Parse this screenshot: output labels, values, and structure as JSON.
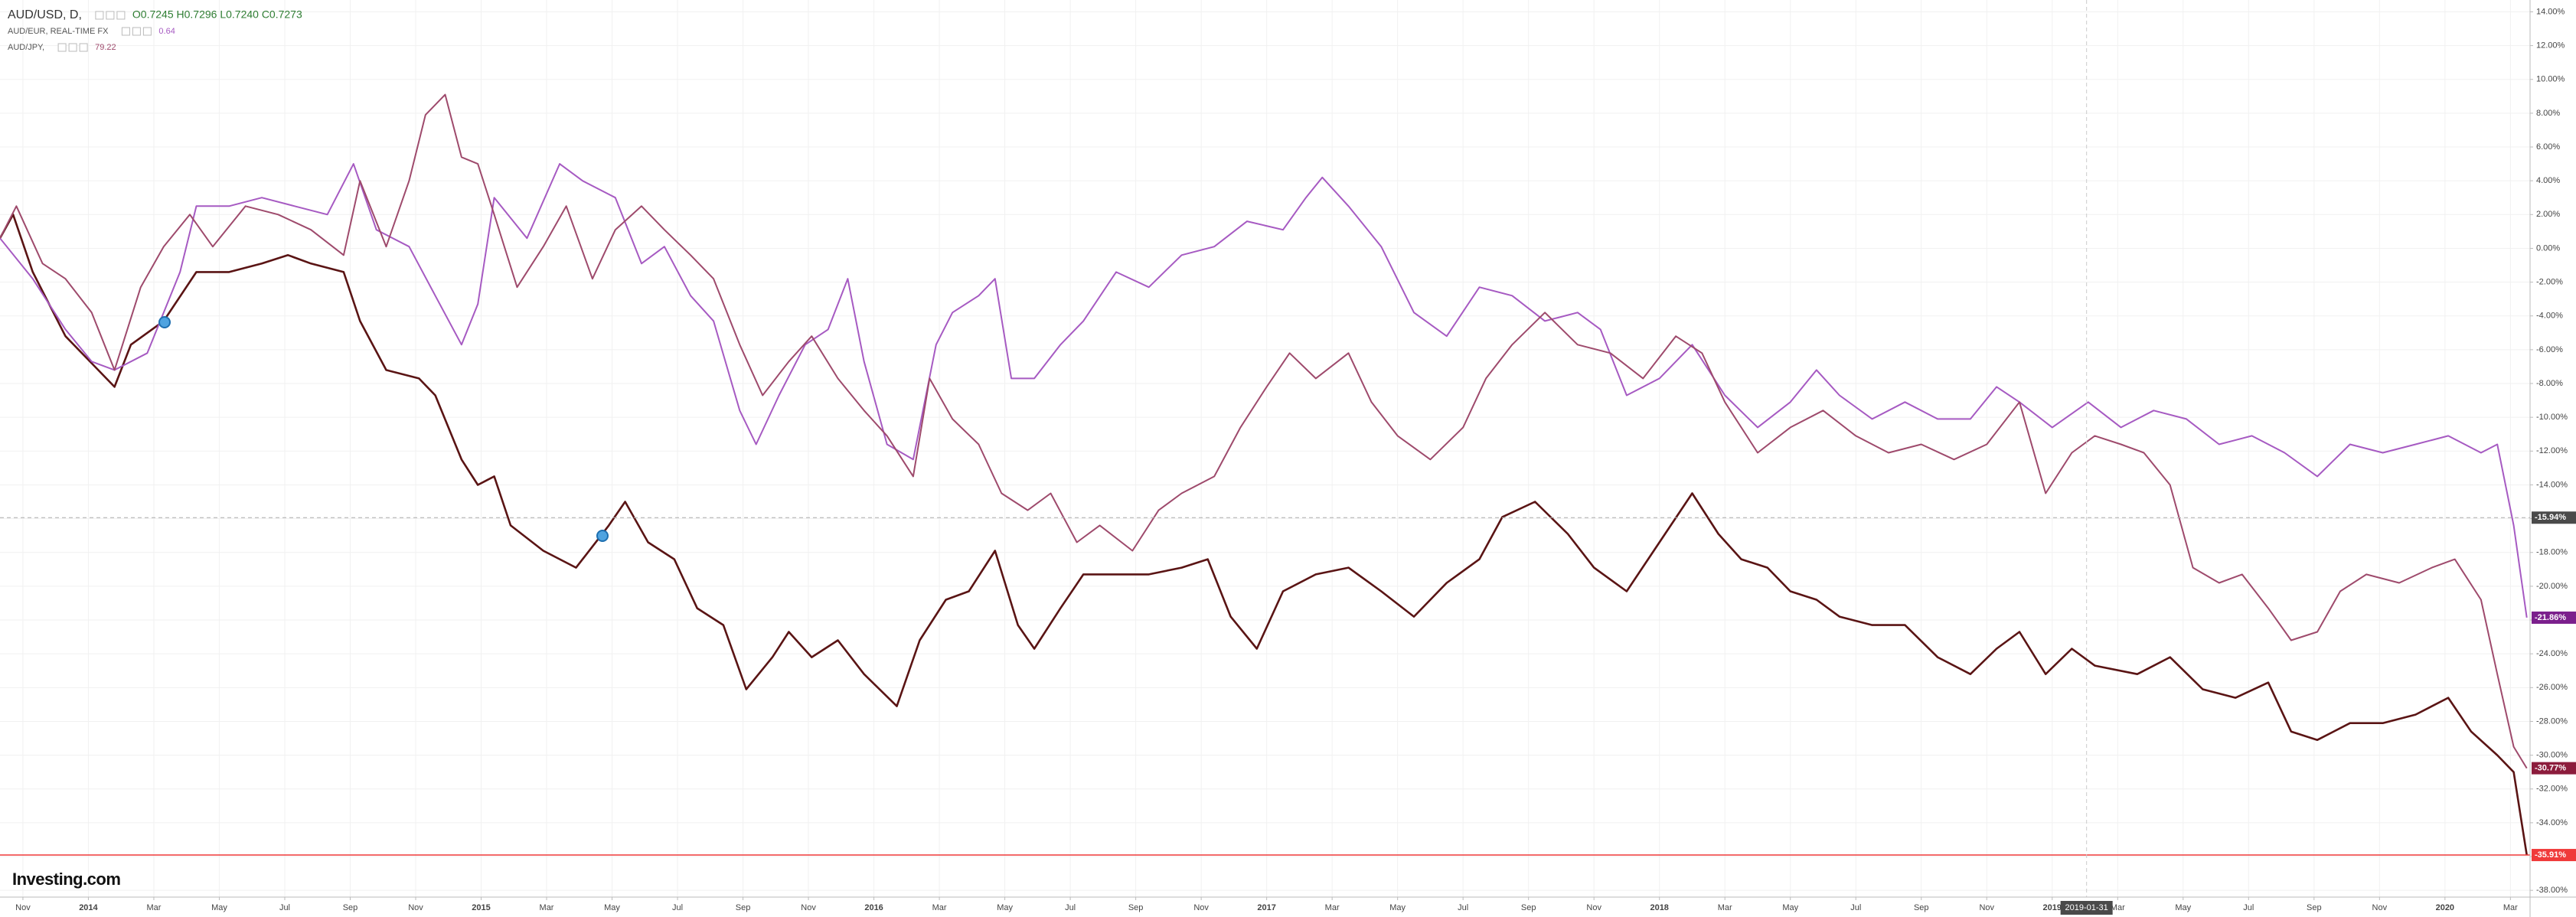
{
  "chart_data": {
    "type": "line",
    "watermark": "Investing.com",
    "grid": true,
    "xlim": [
      -0.7,
      76.6
    ],
    "ylim": [
      -38.4,
      14.7
    ],
    "xticks": [
      {
        "value": 0,
        "label": "Nov"
      },
      {
        "value": 2,
        "label": "2014"
      },
      {
        "value": 4,
        "label": "Mar"
      },
      {
        "value": 6,
        "label": "May"
      },
      {
        "value": 8,
        "label": "Jul"
      },
      {
        "value": 10,
        "label": "Sep"
      },
      {
        "value": 12,
        "label": "Nov"
      },
      {
        "value": 14,
        "label": "2015"
      },
      {
        "value": 16,
        "label": "Mar"
      },
      {
        "value": 18,
        "label": "May"
      },
      {
        "value": 20,
        "label": "Jul"
      },
      {
        "value": 22,
        "label": "Sep"
      },
      {
        "value": 24,
        "label": "Nov"
      },
      {
        "value": 26,
        "label": "2016"
      },
      {
        "value": 28,
        "label": "Mar"
      },
      {
        "value": 30,
        "label": "May"
      },
      {
        "value": 32,
        "label": "Jul"
      },
      {
        "value": 34,
        "label": "Sep"
      },
      {
        "value": 36,
        "label": "Nov"
      },
      {
        "value": 38,
        "label": "2017"
      },
      {
        "value": 40,
        "label": "Mar"
      },
      {
        "value": 42,
        "label": "May"
      },
      {
        "value": 44,
        "label": "Jul"
      },
      {
        "value": 46,
        "label": "Sep"
      },
      {
        "value": 48,
        "label": "Nov"
      },
      {
        "value": 50,
        "label": "2018"
      },
      {
        "value": 52,
        "label": "Mar"
      },
      {
        "value": 54,
        "label": "May"
      },
      {
        "value": 56,
        "label": "Jul"
      },
      {
        "value": 58,
        "label": "Sep"
      },
      {
        "value": 60,
        "label": "Nov"
      },
      {
        "value": 62,
        "label": "2019"
      },
      {
        "value": 64,
        "label": "Mar"
      },
      {
        "value": 66,
        "label": "May"
      },
      {
        "value": 68,
        "label": "Jul"
      },
      {
        "value": 70,
        "label": "Sep"
      },
      {
        "value": 72,
        "label": "Nov"
      },
      {
        "value": 74,
        "label": "2020"
      },
      {
        "value": 76,
        "label": "Mar"
      }
    ],
    "yticks": [
      {
        "value": 14,
        "label": "14.00%"
      },
      {
        "value": 12,
        "label": "12.00%"
      },
      {
        "value": 10,
        "label": "10.00%"
      },
      {
        "value": 8,
        "label": "8.00%"
      },
      {
        "value": 6,
        "label": "6.00%"
      },
      {
        "value": 4,
        "label": "4.00%"
      },
      {
        "value": 2,
        "label": "2.00%"
      },
      {
        "value": 0,
        "label": "0.00%"
      },
      {
        "value": -2,
        "label": "-2.00%"
      },
      {
        "value": -4,
        "label": "-4.00%"
      },
      {
        "value": -6,
        "label": "-6.00%"
      },
      {
        "value": -8,
        "label": "-8.00%"
      },
      {
        "value": -10,
        "label": "-10.00%"
      },
      {
        "value": -12,
        "label": "-12.00%"
      },
      {
        "value": -14,
        "label": "-14.00%"
      },
      {
        "value": -16,
        "label": "-16.00%"
      },
      {
        "value": -18,
        "label": "-18.00%"
      },
      {
        "value": -20,
        "label": "-20.00%"
      },
      {
        "value": -22,
        "label": "-22.00%"
      },
      {
        "value": -24,
        "label": "-24.00%"
      },
      {
        "value": -26,
        "label": "-26.00%"
      },
      {
        "value": -28,
        "label": "-28.00%"
      },
      {
        "value": -30,
        "label": "-30.00%"
      },
      {
        "value": -32,
        "label": "-32.00%"
      },
      {
        "value": -34,
        "label": "-34.00%"
      },
      {
        "value": -36,
        "label": "-36.00%"
      },
      {
        "value": -38,
        "label": "-38.00%"
      }
    ],
    "crosshair": {
      "x": 63.05,
      "x_label": "2019-01-31",
      "y": -15.94,
      "y_label": "-15.94%"
    },
    "series": [
      {
        "name": "AUD/USD, D,",
        "legend_value": "O0.7245  H0.7296  L0.7240  C0.7273",
        "color": "#5a1414",
        "last_label": "-35.91%",
        "label_color": "#f03a3a",
        "x": [
          -0.7,
          -0.3,
          0.3,
          1.3,
          2.3,
          2.8,
          3.3,
          4.3,
          5.3,
          6.3,
          7.3,
          8.1,
          8.8,
          9.8,
          10.3,
          11.1,
          12.1,
          12.6,
          13.4,
          13.9,
          14.4,
          14.9,
          15.9,
          16.9,
          17.9,
          18.4,
          19.1,
          19.9,
          20.6,
          21.4,
          22.1,
          22.9,
          23.4,
          24.1,
          24.9,
          25.7,
          26.7,
          27.4,
          28.2,
          28.9,
          29.7,
          30.4,
          30.9,
          31.7,
          32.4,
          33.4,
          34.4,
          35.4,
          36.2,
          36.9,
          37.7,
          38.5,
          39.5,
          40.5,
          41.5,
          42.5,
          43.5,
          44.5,
          45.2,
          46.2,
          47.2,
          48.0,
          49.0,
          50.0,
          51.0,
          51.8,
          52.5,
          53.3,
          54.0,
          54.8,
          55.5,
          56.5,
          57.5,
          58.5,
          59.5,
          60.3,
          61.0,
          61.8,
          62.6,
          63.3,
          64.6,
          65.6,
          66.6,
          67.6,
          68.6,
          69.3,
          70.1,
          71.1,
          72.1,
          73.1,
          74.1,
          74.8,
          75.6,
          76.1,
          76.5
        ],
        "values": [
          0.6,
          2.0,
          -1.4,
          -5.2,
          -7.2,
          -8.2,
          -5.7,
          -4.3,
          -1.4,
          -1.4,
          -0.9,
          -0.4,
          -0.9,
          -1.4,
          -4.3,
          -7.2,
          -7.7,
          -8.7,
          -12.5,
          -14.0,
          -13.5,
          -16.4,
          -17.9,
          -18.9,
          -16.4,
          -15.0,
          -17.4,
          -18.4,
          -21.3,
          -22.3,
          -26.1,
          -24.2,
          -22.7,
          -24.2,
          -23.2,
          -25.2,
          -27.1,
          -23.2,
          -20.8,
          -20.3,
          -17.9,
          -22.3,
          -23.7,
          -21.3,
          -19.3,
          -19.3,
          -19.3,
          -18.9,
          -18.4,
          -21.8,
          -23.7,
          -20.3,
          -19.3,
          -18.9,
          -20.3,
          -21.8,
          -19.8,
          -18.4,
          -15.9,
          -15.0,
          -16.9,
          -18.9,
          -20.3,
          -17.4,
          -14.5,
          -16.9,
          -18.4,
          -18.9,
          -20.3,
          -20.8,
          -21.8,
          -22.3,
          -22.3,
          -24.2,
          -25.2,
          -23.7,
          -22.7,
          -25.2,
          -23.7,
          -24.7,
          -25.2,
          -24.2,
          -26.1,
          -26.6,
          -25.7,
          -28.6,
          -29.1,
          -28.1,
          -28.1,
          -27.6,
          -26.6,
          -28.6,
          -30.0,
          -31.0,
          -35.91
        ]
      },
      {
        "name": "AUD/EUR, REAL-TIME FX",
        "legend_value": "0.64",
        "color": "#a65ac2",
        "last_label": "-21.86%",
        "label_color": "#7b1f8c",
        "x": [
          -0.7,
          0.3,
          1.3,
          2.1,
          2.8,
          3.8,
          4.8,
          5.3,
          6.3,
          7.3,
          8.3,
          9.3,
          10.1,
          10.8,
          11.8,
          12.6,
          13.4,
          13.9,
          14.4,
          15.4,
          16.4,
          17.1,
          18.1,
          18.9,
          19.6,
          20.4,
          21.1,
          21.9,
          22.4,
          23.1,
          23.9,
          24.6,
          25.2,
          25.7,
          26.4,
          27.2,
          27.9,
          28.4,
          29.2,
          29.7,
          30.2,
          30.9,
          31.7,
          32.4,
          33.4,
          34.4,
          35.4,
          36.4,
          37.4,
          38.5,
          39.2,
          39.7,
          40.5,
          41.5,
          42.5,
          43.5,
          44.5,
          45.5,
          46.5,
          47.5,
          48.2,
          49.0,
          50.0,
          51.0,
          52.0,
          53.0,
          54.0,
          54.8,
          55.5,
          56.5,
          57.5,
          58.5,
          59.5,
          60.3,
          61.0,
          62.0,
          63.1,
          64.1,
          65.1,
          66.1,
          67.1,
          68.1,
          69.1,
          70.1,
          71.1,
          72.1,
          73.1,
          74.1,
          75.1,
          75.6,
          76.1,
          76.5
        ],
        "values": [
          0.6,
          -1.8,
          -4.8,
          -6.7,
          -7.2,
          -6.2,
          -1.4,
          2.5,
          2.5,
          3.0,
          2.5,
          2.0,
          5.0,
          1.1,
          0.1,
          -2.8,
          -5.7,
          -3.3,
          3.0,
          0.6,
          5.0,
          4.0,
          3.0,
          -0.9,
          0.1,
          -2.8,
          -4.3,
          -9.6,
          -11.6,
          -8.7,
          -5.7,
          -4.8,
          -1.8,
          -6.7,
          -11.6,
          -12.5,
          -5.7,
          -3.8,
          -2.8,
          -1.8,
          -7.7,
          -7.7,
          -5.7,
          -4.3,
          -1.4,
          -2.3,
          -0.4,
          0.1,
          1.6,
          1.1,
          3.0,
          4.2,
          2.5,
          0.1,
          -3.8,
          -5.2,
          -2.3,
          -2.8,
          -4.3,
          -3.8,
          -4.8,
          -8.7,
          -7.7,
          -5.7,
          -8.7,
          -10.6,
          -9.1,
          -7.2,
          -8.7,
          -10.1,
          -9.1,
          -10.1,
          -10.1,
          -8.2,
          -9.1,
          -10.6,
          -9.1,
          -10.6,
          -9.6,
          -10.1,
          -11.6,
          -11.1,
          -12.1,
          -13.5,
          -11.6,
          -12.1,
          -11.6,
          -11.1,
          -12.1,
          -11.6,
          -16.4,
          -21.86
        ]
      },
      {
        "name": "AUD/JPY,",
        "legend_value": "79.22",
        "color": "#9e4a6c",
        "last_label": "-30.77%",
        "label_color": "#8c1c3c",
        "x": [
          -0.7,
          -0.2,
          0.6,
          1.3,
          2.1,
          2.8,
          3.6,
          4.3,
          5.1,
          5.8,
          6.8,
          7.8,
          8.8,
          9.8,
          10.3,
          11.1,
          11.8,
          12.3,
          12.9,
          13.4,
          13.9,
          14.4,
          15.1,
          15.9,
          16.6,
          17.4,
          18.1,
          18.9,
          19.6,
          20.4,
          21.1,
          21.9,
          22.6,
          23.4,
          24.1,
          24.9,
          25.7,
          26.4,
          27.2,
          27.7,
          28.4,
          29.2,
          29.9,
          30.7,
          31.4,
          32.2,
          32.9,
          33.9,
          34.7,
          35.4,
          36.4,
          37.2,
          38.0,
          38.7,
          39.5,
          40.5,
          41.2,
          42.0,
          43.0,
          44.0,
          44.7,
          45.5,
          46.5,
          47.5,
          48.5,
          49.5,
          50.5,
          51.3,
          52.0,
          53.0,
          54.0,
          55.0,
          56.0,
          57.0,
          58.0,
          59.0,
          60.0,
          61.0,
          61.8,
          62.6,
          63.3,
          64.1,
          64.8,
          65.6,
          66.3,
          67.1,
          67.8,
          68.6,
          69.3,
          70.1,
          70.8,
          71.6,
          72.6,
          73.6,
          74.3,
          75.1,
          75.6,
          76.1,
          76.5
        ],
        "values": [
          0.6,
          2.5,
          -0.9,
          -1.8,
          -3.8,
          -7.2,
          -2.3,
          0.1,
          2.0,
          0.1,
          2.5,
          2.0,
          1.1,
          -0.4,
          4.0,
          0.1,
          4.0,
          7.9,
          9.1,
          5.4,
          5.0,
          2.0,
          -2.3,
          0.1,
          2.5,
          -1.8,
          1.1,
          2.5,
          1.1,
          -0.4,
          -1.8,
          -5.7,
          -8.7,
          -6.7,
          -5.2,
          -7.7,
          -9.6,
          -11.1,
          -13.5,
          -7.7,
          -10.1,
          -11.6,
          -14.5,
          -15.5,
          -14.5,
          -17.4,
          -16.4,
          -17.9,
          -15.5,
          -14.5,
          -13.5,
          -10.6,
          -8.2,
          -6.2,
          -7.7,
          -6.2,
          -9.1,
          -11.1,
          -12.5,
          -10.6,
          -7.7,
          -5.7,
          -3.8,
          -5.7,
          -6.2,
          -7.7,
          -5.2,
          -6.2,
          -9.1,
          -12.1,
          -10.6,
          -9.6,
          -11.1,
          -12.1,
          -11.6,
          -12.5,
          -11.6,
          -9.1,
          -14.5,
          -12.1,
          -11.1,
          -11.6,
          -12.1,
          -14.0,
          -18.9,
          -19.8,
          -19.3,
          -21.3,
          -23.2,
          -22.7,
          -20.3,
          -19.3,
          -19.8,
          -18.9,
          -18.4,
          -20.8,
          -25.2,
          -29.5,
          -30.77
        ]
      }
    ]
  }
}
